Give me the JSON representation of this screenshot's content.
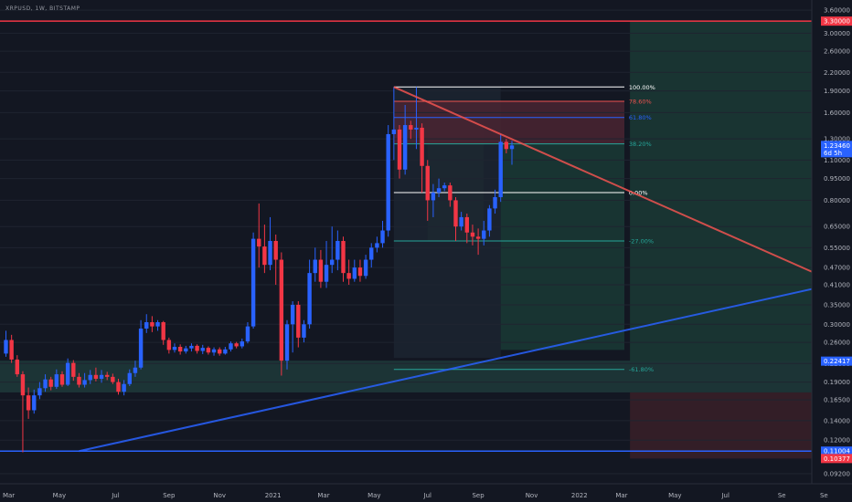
{
  "symbol": "XRPUSD, 1W, BITSTAMP",
  "chart_data": {
    "type": "candlestick",
    "x_ticks": [
      "Mar",
      "May",
      "Jul",
      "Sep",
      "Nov",
      "2021",
      "Mar",
      "May",
      "Jul",
      "Sep",
      "Nov",
      "2022",
      "Mar",
      "May",
      "Jul",
      "Se"
    ],
    "y_ticks": [
      "3.60000",
      "3.00000",
      "2.60000",
      "2.20000",
      "1.90000",
      "1.60000",
      "1.30000",
      "1.10000",
      "0.95000",
      "0.80000",
      "0.65000",
      "0.55000",
      "0.47000",
      "0.41000",
      "0.35000",
      "0.30000",
      "0.26000",
      "0.22000",
      "0.19000",
      "0.16500",
      "0.14000",
      "0.12000",
      "0.09200"
    ],
    "y_scale": "log",
    "ylim": [
      0.085,
      3.9
    ],
    "fib_levels": [
      {
        "label": "100.00%",
        "price": 1.96,
        "color": "#ffffff"
      },
      {
        "label": "78.60%",
        "price": 1.75,
        "color": "#ef5350"
      },
      {
        "label": "61.80%",
        "price": 1.54,
        "color": "#2962ff"
      },
      {
        "label": "38.20%",
        "price": 1.25,
        "color": "#26a69a"
      },
      {
        "label": "0.00%",
        "price": 0.85,
        "color": "#ffffff"
      },
      {
        "label": "-27.00%",
        "price": 0.58,
        "color": "#26a69a"
      },
      {
        "label": "-61.80%",
        "price": 0.21,
        "color": "#26a69a"
      }
    ],
    "price_badges": [
      {
        "label": "3.30000",
        "price": 3.3,
        "color": "#f23645"
      },
      {
        "label": "1.23460",
        "sublabel": "6d 5h",
        "price": 1.2346,
        "color": "#2962ff"
      },
      {
        "label": "0.22417",
        "price": 0.22417,
        "color": "#2962ff"
      },
      {
        "label": "0.11004",
        "price": 0.11004,
        "color": "#2962ff"
      },
      {
        "label": "0.10377",
        "price": 0.10377,
        "color": "#f23645"
      }
    ],
    "horizontal_lines": [
      {
        "price": 3.3,
        "color": "#f23645"
      },
      {
        "price": 0.11004,
        "color": "#2962ff"
      }
    ],
    "trend_lines": [
      {
        "from": [
          13,
          0.11
        ],
        "to": [
          148,
          0.415
        ],
        "color": "#2962ff"
      },
      {
        "from": [
          69,
          1.96
        ],
        "to": [
          148,
          0.415
        ],
        "color": "#ef5350"
      }
    ],
    "zones": [
      {
        "t0": -2,
        "t1": 149,
        "p_lo": 0.175,
        "p_hi": 0.225,
        "color": "#1f3a3a"
      },
      {
        "t0": 75,
        "t1": 85,
        "p_lo": 0.58,
        "p_hi": 1.54,
        "color": "#1e3b36"
      },
      {
        "t0": 69,
        "t1": 88,
        "p_lo": 0.23,
        "p_hi": 1.96,
        "color": "#1c2530"
      },
      {
        "t0": 69,
        "t1": 110,
        "p_lo": 1.25,
        "p_hi": 1.75,
        "color": "#4a2431"
      },
      {
        "t0": 88,
        "t1": 110,
        "p_lo": 0.245,
        "p_hi": 1.25,
        "color": "#1a3a35"
      },
      {
        "t0": 111,
        "t1": 149,
        "p_lo": 0.22417,
        "p_hi": 3.3,
        "color": "#1b3935"
      },
      {
        "t0": 111,
        "t1": 149,
        "p_lo": 0.10377,
        "p_hi": 0.175,
        "color": "#3a2028"
      }
    ],
    "ohlc": [
      [
        0.238,
        0.265,
        0.232,
        0.285
      ],
      [
        0.265,
        0.227,
        0.221,
        0.276
      ],
      [
        0.227,
        0.202,
        0.198,
        0.235
      ],
      [
        0.202,
        0.171,
        0.109,
        0.207
      ],
      [
        0.171,
        0.152,
        0.142,
        0.182
      ],
      [
        0.152,
        0.171,
        0.148,
        0.179
      ],
      [
        0.171,
        0.181,
        0.166,
        0.19
      ],
      [
        0.181,
        0.194,
        0.176,
        0.202
      ],
      [
        0.194,
        0.183,
        0.178,
        0.198
      ],
      [
        0.183,
        0.202,
        0.18,
        0.21
      ],
      [
        0.202,
        0.186,
        0.183,
        0.207
      ],
      [
        0.186,
        0.221,
        0.184,
        0.229
      ],
      [
        0.221,
        0.198,
        0.192,
        0.226
      ],
      [
        0.198,
        0.186,
        0.182,
        0.204
      ],
      [
        0.186,
        0.193,
        0.182,
        0.204
      ],
      [
        0.193,
        0.201,
        0.187,
        0.209
      ],
      [
        0.201,
        0.195,
        0.191,
        0.213
      ],
      [
        0.195,
        0.201,
        0.189,
        0.209
      ],
      [
        0.201,
        0.198,
        0.193,
        0.206
      ],
      [
        0.198,
        0.19,
        0.187,
        0.203
      ],
      [
        0.19,
        0.176,
        0.172,
        0.195
      ],
      [
        0.176,
        0.187,
        0.171,
        0.193
      ],
      [
        0.187,
        0.204,
        0.184,
        0.21
      ],
      [
        0.204,
        0.213,
        0.198,
        0.225
      ],
      [
        0.213,
        0.29,
        0.21,
        0.31
      ],
      [
        0.29,
        0.305,
        0.28,
        0.325
      ],
      [
        0.305,
        0.295,
        0.282,
        0.32
      ],
      [
        0.295,
        0.305,
        0.285,
        0.31
      ],
      [
        0.305,
        0.265,
        0.255,
        0.308
      ],
      [
        0.265,
        0.245,
        0.238,
        0.27
      ],
      [
        0.245,
        0.251,
        0.24,
        0.258
      ],
      [
        0.251,
        0.242,
        0.236,
        0.256
      ],
      [
        0.242,
        0.248,
        0.238,
        0.253
      ],
      [
        0.248,
        0.253,
        0.242,
        0.258
      ],
      [
        0.253,
        0.243,
        0.238,
        0.256
      ],
      [
        0.243,
        0.249,
        0.237,
        0.255
      ],
      [
        0.249,
        0.24,
        0.236,
        0.252
      ],
      [
        0.24,
        0.246,
        0.234,
        0.25
      ],
      [
        0.246,
        0.238,
        0.234,
        0.25
      ],
      [
        0.238,
        0.246,
        0.236,
        0.251
      ],
      [
        0.246,
        0.258,
        0.242,
        0.262
      ],
      [
        0.258,
        0.252,
        0.248,
        0.261
      ],
      [
        0.252,
        0.262,
        0.248,
        0.268
      ],
      [
        0.262,
        0.295,
        0.258,
        0.305
      ],
      [
        0.295,
        0.59,
        0.29,
        0.62
      ],
      [
        0.59,
        0.555,
        0.47,
        0.78
      ],
      [
        0.555,
        0.48,
        0.45,
        0.66
      ],
      [
        0.48,
        0.58,
        0.46,
        0.7
      ],
      [
        0.58,
        0.5,
        0.41,
        0.61
      ],
      [
        0.5,
        0.225,
        0.2,
        0.53
      ],
      [
        0.225,
        0.3,
        0.21,
        0.31
      ],
      [
        0.3,
        0.35,
        0.24,
        0.36
      ],
      [
        0.35,
        0.27,
        0.25,
        0.36
      ],
      [
        0.27,
        0.3,
        0.26,
        0.31
      ],
      [
        0.3,
        0.45,
        0.29,
        0.5
      ],
      [
        0.45,
        0.5,
        0.42,
        0.55
      ],
      [
        0.5,
        0.42,
        0.4,
        0.54
      ],
      [
        0.42,
        0.48,
        0.4,
        0.58
      ],
      [
        0.48,
        0.5,
        0.45,
        0.65
      ],
      [
        0.5,
        0.58,
        0.46,
        0.63
      ],
      [
        0.58,
        0.45,
        0.42,
        0.6
      ],
      [
        0.45,
        0.43,
        0.41,
        0.5
      ],
      [
        0.43,
        0.47,
        0.42,
        0.5
      ],
      [
        0.47,
        0.44,
        0.42,
        0.5
      ],
      [
        0.44,
        0.5,
        0.43,
        0.52
      ],
      [
        0.5,
        0.55,
        0.47,
        0.57
      ],
      [
        0.55,
        0.57,
        0.53,
        0.6
      ],
      [
        0.57,
        0.63,
        0.55,
        0.68
      ],
      [
        0.63,
        1.35,
        0.6,
        1.45
      ],
      [
        1.35,
        1.4,
        1.1,
        1.96
      ],
      [
        1.4,
        1.02,
        0.95,
        1.45
      ],
      [
        1.02,
        1.45,
        0.98,
        1.7
      ],
      [
        1.45,
        1.4,
        1.3,
        1.5
      ],
      [
        1.4,
        1.42,
        1.2,
        1.96
      ],
      [
        1.42,
        1.05,
        0.85,
        1.47
      ],
      [
        1.05,
        0.8,
        0.68,
        1.1
      ],
      [
        0.8,
        0.85,
        0.7,
        0.91
      ],
      [
        0.85,
        0.88,
        0.82,
        0.95
      ],
      [
        0.88,
        0.9,
        0.86,
        0.92
      ],
      [
        0.9,
        0.8,
        0.76,
        0.92
      ],
      [
        0.8,
        0.65,
        0.58,
        0.82
      ],
      [
        0.65,
        0.7,
        0.63,
        0.73
      ],
      [
        0.7,
        0.62,
        0.57,
        0.72
      ],
      [
        0.62,
        0.6,
        0.56,
        0.66
      ],
      [
        0.6,
        0.59,
        0.52,
        0.64
      ],
      [
        0.59,
        0.63,
        0.56,
        0.68
      ],
      [
        0.63,
        0.75,
        0.6,
        0.77
      ],
      [
        0.75,
        0.82,
        0.72,
        0.87
      ],
      [
        0.82,
        1.27,
        0.79,
        1.35
      ],
      [
        1.27,
        1.2,
        1.16,
        1.3
      ],
      [
        1.2,
        1.2346,
        1.06,
        1.28
      ]
    ]
  }
}
